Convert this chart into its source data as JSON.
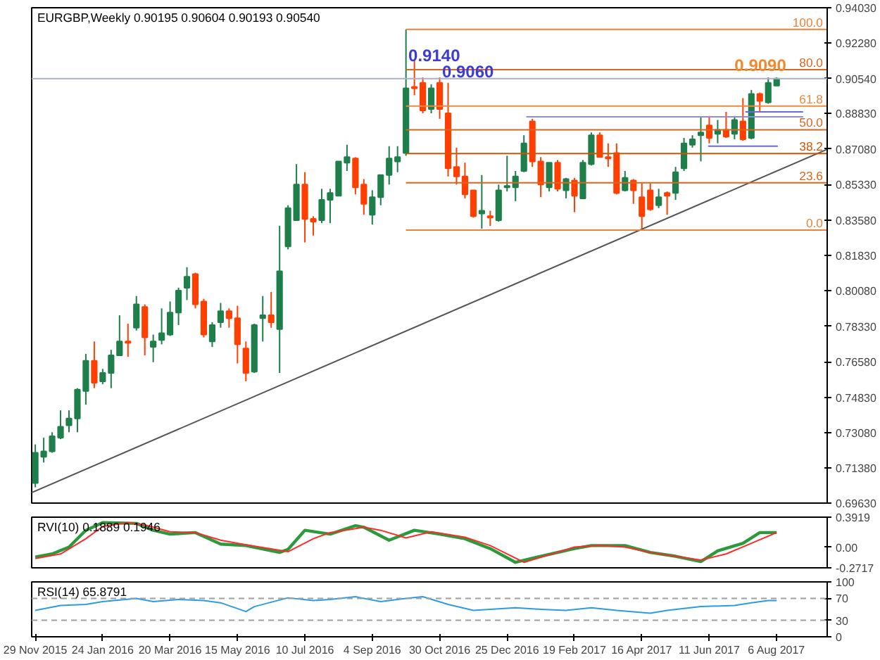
{
  "chart_data": [
    {
      "type": "candlestick",
      "title": "EURGBP,Weekly  0.90195 0.90604 0.90193 0.90540",
      "tick_labels": "y",
      "grid": false,
      "xlim": [
        "2015-11-26",
        "2017-09-17"
      ],
      "ylim": [
        0.6963,
        0.9403
      ],
      "yticks": [
        {
          "value": 0.9403,
          "label": "0.94030"
        },
        {
          "value": 0.9228,
          "label": "0.92280"
        },
        {
          "value": 0.9054,
          "label": "0.90540"
        },
        {
          "value": 0.8883,
          "label": "0.88830"
        },
        {
          "value": 0.8708,
          "label": "0.87080"
        },
        {
          "value": 0.8533,
          "label": "0.85330"
        },
        {
          "value": 0.8358,
          "label": "0.83580"
        },
        {
          "value": 0.8183,
          "label": "0.81830"
        },
        {
          "value": 0.8008,
          "label": "0.80080"
        },
        {
          "value": 0.7833,
          "label": "0.78330"
        },
        {
          "value": 0.7658,
          "label": "0.76580"
        },
        {
          "value": 0.7483,
          "label": "0.74830"
        },
        {
          "value": 0.7308,
          "label": "0.73080"
        },
        {
          "value": 0.7138,
          "label": "0.71380"
        },
        {
          "value": 0.6963,
          "label": "0.69630"
        }
      ],
      "x": [
        "2015-11-29",
        "2015-12-06",
        "2015-12-13",
        "2015-12-20",
        "2015-12-27",
        "2016-01-03",
        "2016-01-10",
        "2016-01-17",
        "2016-01-24",
        "2016-01-31",
        "2016-02-07",
        "2016-02-14",
        "2016-02-21",
        "2016-02-28",
        "2016-03-06",
        "2016-03-13",
        "2016-03-20",
        "2016-03-27",
        "2016-04-03",
        "2016-04-10",
        "2016-04-17",
        "2016-04-24",
        "2016-05-01",
        "2016-05-08",
        "2016-05-15",
        "2016-05-22",
        "2016-05-29",
        "2016-06-05",
        "2016-06-12",
        "2016-06-19",
        "2016-06-26",
        "2016-07-03",
        "2016-07-10",
        "2016-07-17",
        "2016-07-24",
        "2016-07-31",
        "2016-08-07",
        "2016-08-14",
        "2016-08-21",
        "2016-08-28",
        "2016-09-04",
        "2016-09-11",
        "2016-09-18",
        "2016-09-25",
        "2016-10-02",
        "2016-10-09",
        "2016-10-16",
        "2016-10-23",
        "2016-10-30",
        "2016-11-06",
        "2016-11-13",
        "2016-11-20",
        "2016-11-27",
        "2016-12-04",
        "2016-12-11",
        "2016-12-18",
        "2016-12-25",
        "2017-01-01",
        "2017-01-08",
        "2017-01-15",
        "2017-01-22",
        "2017-01-29",
        "2017-02-05",
        "2017-02-12",
        "2017-02-19",
        "2017-02-26",
        "2017-03-05",
        "2017-03-12",
        "2017-03-19",
        "2017-03-26",
        "2017-04-02",
        "2017-04-09",
        "2017-04-16",
        "2017-04-23",
        "2017-04-30",
        "2017-05-07",
        "2017-05-14",
        "2017-05-21",
        "2017-05-28",
        "2017-06-04",
        "2017-06-11",
        "2017-06-18",
        "2017-06-25",
        "2017-07-02",
        "2017-07-09",
        "2017-07-16",
        "2017-07-23",
        "2017-07-30",
        "2017-08-06"
      ],
      "ohlc": [
        [
          0.7062,
          0.7252,
          0.7041,
          0.7211
        ],
        [
          0.7191,
          0.7285,
          0.7163,
          0.7218
        ],
        [
          0.7218,
          0.7312,
          0.7211,
          0.7292
        ],
        [
          0.7285,
          0.742,
          0.7278,
          0.7339
        ],
        [
          0.7346,
          0.742,
          0.7312,
          0.738
        ],
        [
          0.738,
          0.7529,
          0.7312,
          0.7522
        ],
        [
          0.7515,
          0.7698,
          0.7448,
          0.7664
        ],
        [
          0.7664,
          0.7759,
          0.7529,
          0.7556
        ],
        [
          0.7563,
          0.7624,
          0.7549,
          0.7604
        ],
        [
          0.7604,
          0.7718,
          0.7529,
          0.7691
        ],
        [
          0.7691,
          0.7888,
          0.7691,
          0.7759
        ],
        [
          0.7759,
          0.7847,
          0.7684,
          0.7752
        ],
        [
          0.7827,
          0.7983,
          0.7813,
          0.7942
        ],
        [
          0.7929,
          0.7942,
          0.7691,
          0.7779
        ],
        [
          0.7732,
          0.7793,
          0.7657,
          0.7759
        ],
        [
          0.7766,
          0.7922,
          0.7745,
          0.78
        ],
        [
          0.7793,
          0.7956,
          0.7786,
          0.7901
        ],
        [
          0.7901,
          0.8024,
          0.784,
          0.801
        ],
        [
          0.8024,
          0.8125,
          0.7963,
          0.8078
        ],
        [
          0.8091,
          0.8098,
          0.7922,
          0.7942
        ],
        [
          0.7956,
          0.7969,
          0.7779,
          0.7793
        ],
        [
          0.7759,
          0.7854,
          0.7732,
          0.784
        ],
        [
          0.7854,
          0.7949,
          0.7827,
          0.7908
        ],
        [
          0.7908,
          0.7922,
          0.7827,
          0.7874
        ],
        [
          0.7874,
          0.7935,
          0.7651,
          0.7745
        ],
        [
          0.7725,
          0.7759,
          0.7563,
          0.7604
        ],
        [
          0.761,
          0.7847,
          0.7604,
          0.784
        ],
        [
          0.7874,
          0.7983,
          0.7759,
          0.7888
        ],
        [
          0.7888,
          0.8003,
          0.7827,
          0.7854
        ],
        [
          0.782,
          0.8329,
          0.7604,
          0.8105
        ],
        [
          0.8227,
          0.843,
          0.8213,
          0.8416
        ],
        [
          0.8356,
          0.8633,
          0.8356,
          0.8532
        ],
        [
          0.8532,
          0.8593,
          0.8247,
          0.8362
        ],
        [
          0.8363,
          0.8376,
          0.8281,
          0.8349
        ],
        [
          0.8356,
          0.8511,
          0.8342,
          0.8457
        ],
        [
          0.8457,
          0.8511,
          0.8342,
          0.8491
        ],
        [
          0.8477,
          0.8646,
          0.8477,
          0.8646
        ],
        [
          0.864,
          0.8728,
          0.8599,
          0.8667
        ],
        [
          0.866,
          0.8667,
          0.8484,
          0.8518
        ],
        [
          0.8532,
          0.8559,
          0.8383,
          0.8437
        ],
        [
          0.8383,
          0.8504,
          0.8335,
          0.847
        ],
        [
          0.847,
          0.8579,
          0.843,
          0.8579
        ],
        [
          0.8579,
          0.8721,
          0.8532,
          0.866
        ],
        [
          0.8646,
          0.8721,
          0.8593,
          0.8667
        ],
        [
          0.8687,
          0.9296,
          0.8674,
          0.9006
        ],
        [
          0.9013,
          0.9147,
          0.8972,
          0.9006
        ],
        [
          0.9033,
          0.906,
          0.8883,
          0.8897
        ],
        [
          0.8904,
          0.9026,
          0.8883,
          0.9006
        ],
        [
          0.9033,
          0.906,
          0.8856,
          0.8904
        ],
        [
          0.8883,
          0.9033,
          0.8572,
          0.8612
        ],
        [
          0.8619,
          0.8714,
          0.8532,
          0.8572
        ],
        [
          0.8572,
          0.864,
          0.8464,
          0.8484
        ],
        [
          0.8504,
          0.8504,
          0.8369,
          0.8376
        ],
        [
          0.8389,
          0.8579,
          0.8315,
          0.8403
        ],
        [
          0.8376,
          0.8403,
          0.8328,
          0.8369
        ],
        [
          0.8356,
          0.8532,
          0.8349,
          0.8504
        ],
        [
          0.8518,
          0.8674,
          0.8498,
          0.8525
        ],
        [
          0.8518,
          0.8599,
          0.845,
          0.8572
        ],
        [
          0.8599,
          0.8775,
          0.8593,
          0.8735
        ],
        [
          0.8843,
          0.8856,
          0.8619,
          0.8646
        ],
        [
          0.8646,
          0.8667,
          0.847,
          0.8532
        ],
        [
          0.8518,
          0.864,
          0.8498,
          0.864
        ],
        [
          0.864,
          0.8653,
          0.8498,
          0.8511
        ],
        [
          0.8504,
          0.8565,
          0.8464,
          0.8559
        ],
        [
          0.8552,
          0.8565,
          0.8396,
          0.8477
        ],
        [
          0.8464,
          0.8653,
          0.8464,
          0.864
        ],
        [
          0.8633,
          0.8789,
          0.8626,
          0.8775
        ],
        [
          0.8775,
          0.8789,
          0.8667,
          0.8667
        ],
        [
          0.8667,
          0.8735,
          0.8619,
          0.866
        ],
        [
          0.8687,
          0.8735,
          0.8484,
          0.8491
        ],
        [
          0.8504,
          0.8599,
          0.8498,
          0.8565
        ],
        [
          0.8552,
          0.8559,
          0.8437,
          0.8504
        ],
        [
          0.847,
          0.8538,
          0.8315,
          0.8376
        ],
        [
          0.8504,
          0.8538,
          0.8403,
          0.841
        ],
        [
          0.843,
          0.8511,
          0.8416,
          0.847
        ],
        [
          0.8491,
          0.8498,
          0.8383,
          0.8477
        ],
        [
          0.8491,
          0.8619,
          0.8457,
          0.8593
        ],
        [
          0.8612,
          0.8762,
          0.8599,
          0.8735
        ],
        [
          0.8728,
          0.8775,
          0.8714,
          0.8755
        ],
        [
          0.8775,
          0.8863,
          0.8646,
          0.8789
        ],
        [
          0.8823,
          0.887,
          0.8735,
          0.8762
        ],
        [
          0.8782,
          0.885,
          0.8735,
          0.8802
        ],
        [
          0.8802,
          0.889,
          0.8762,
          0.8768
        ],
        [
          0.8782,
          0.887,
          0.8755,
          0.885
        ],
        [
          0.8843,
          0.8958,
          0.8748,
          0.8755
        ],
        [
          0.8762,
          0.8998,
          0.8755,
          0.8978
        ],
        [
          0.8978,
          0.8985,
          0.889,
          0.8944
        ],
        [
          0.8937,
          0.906,
          0.893,
          0.9033
        ],
        [
          0.90195,
          0.90604,
          0.90193,
          0.9054
        ]
      ],
      "colors": [
        "#1e7f4b",
        "#1e7f4b",
        "#1e7f4b",
        "#1e7f4b",
        "#1e7f4b",
        "#1e7f4b",
        "#1e7f4b",
        "#ff3f00",
        "#1e7f4b",
        "#1e7f4b",
        "#1e7f4b",
        "#ff3f00",
        "#1e7f4b",
        "#ff3f00",
        "#1e7f4b",
        "#1e7f4b",
        "#1e7f4b",
        "#1e7f4b",
        "#1e7f4b",
        "#ff3f00",
        "#ff3f00",
        "#1e7f4b",
        "#1e7f4b",
        "#ff3f00",
        "#ff3f00",
        "#ff3f00",
        "#1e7f4b",
        "#1e7f4b",
        "#ff3f00",
        "#1e7f4b",
        "#1e7f4b",
        "#1e7f4b",
        "#ff3f00",
        "#ff3f00",
        "#1e7f4b",
        "#1e7f4b",
        "#1e7f4b",
        "#1e7f4b",
        "#ff3f00",
        "#ff3f00",
        "#1e7f4b",
        "#1e7f4b",
        "#1e7f4b",
        "#1e7f4b",
        "#1e7f4b",
        "#ff3f00",
        "#ff3f00",
        "#1e7f4b",
        "#ff3f00",
        "#ff3f00",
        "#ff3f00",
        "#ff3f00",
        "#ff3f00",
        "#1e7f4b",
        "#ff3f00",
        "#1e7f4b",
        "#1e7f4b",
        "#1e7f4b",
        "#1e7f4b",
        "#ff3f00",
        "#ff3f00",
        "#1e7f4b",
        "#ff3f00",
        "#1e7f4b",
        "#ff3f00",
        "#1e7f4b",
        "#1e7f4b",
        "#ff3f00",
        "#ff3f00",
        "#ff3f00",
        "#1e7f4b",
        "#ff3f00",
        "#ff3f00",
        "#ff3f00",
        "#1e7f4b",
        "#ff3f00",
        "#1e7f4b",
        "#1e7f4b",
        "#1e7f4b",
        "#1e7f4b",
        "#ff3f00",
        "#1e7f4b",
        "#ff3f00",
        "#1e7f4b",
        "#ff3f00",
        "#1e7f4b",
        "#ff3f00",
        "#1e7f4b",
        "#1e7f4b"
      ],
      "series": [
        {
          "type": "line",
          "color": "#555555",
          "x": [
            "2015-11-26",
            "2017-09-17"
          ],
          "values": [
            0.7015,
            0.8706
          ]
        },
        {
          "type": "line",
          "name": "100.0",
          "color": "#e8823a",
          "x": [
            "2016-10-02",
            "2017-09-17"
          ],
          "values": [
            0.9296,
            0.9296
          ]
        },
        {
          "type": "line",
          "name": "80.0",
          "color": "#d9661f",
          "x": [
            "2016-10-02",
            "2017-09-17"
          ],
          "values": [
            0.9098,
            0.9098
          ]
        },
        {
          "type": "line",
          "name": "61.8",
          "color": "#ee8a3e",
          "x": [
            "2016-10-02",
            "2017-09-17"
          ],
          "values": [
            0.8919,
            0.8919
          ]
        },
        {
          "type": "line",
          "name": "50.0",
          "color": "#d9661f",
          "x": [
            "2016-10-02",
            "2017-09-17"
          ],
          "values": [
            0.8802,
            0.8802
          ]
        },
        {
          "type": "line",
          "name": "38.2",
          "color": "#d35400",
          "x": [
            "2016-10-02",
            "2017-09-17"
          ],
          "values": [
            0.8685,
            0.8685
          ]
        },
        {
          "type": "line",
          "name": "23.6",
          "color": "#d9661f",
          "x": [
            "2016-10-02",
            "2017-09-17"
          ],
          "values": [
            0.8541,
            0.8541
          ]
        },
        {
          "type": "line",
          "name": "0.0",
          "color": "#e8823a",
          "x": [
            "2016-10-02",
            "2017-09-17"
          ],
          "values": [
            0.8308,
            0.8308
          ]
        },
        {
          "type": "line",
          "color": "#8c8cf0",
          "x": [
            "2017-01-10",
            "2017-08-28"
          ],
          "values": [
            0.8866,
            0.8866
          ]
        },
        {
          "type": "line",
          "color": "#6a6ae0",
          "x": [
            "2017-07-11",
            "2017-08-28"
          ],
          "values": [
            0.889,
            0.889
          ]
        },
        {
          "type": "line",
          "color": "#6a6ae0",
          "x": [
            "2017-06-10",
            "2017-08-07"
          ],
          "values": [
            0.8721,
            0.8721
          ]
        }
      ],
      "ref_lines": [
        {
          "axis": "y",
          "value": 0.9054,
          "color": "#a8b0c8"
        }
      ],
      "annotations": [
        {
          "text": "0.9140",
          "x": "2016-10-04",
          "y": 0.914
        },
        {
          "text": "0.9060",
          "x": "2016-11-01",
          "y": 0.906
        },
        {
          "text": "0.9090",
          "x": "2017-07-02",
          "y": 0.909
        }
      ]
    },
    {
      "type": "line",
      "title": "RVI(10) 0.1889 0.1946",
      "tick_labels": "y",
      "grid": false,
      "xlim": [
        "2015-11-26",
        "2017-09-17"
      ],
      "ylim": [
        -0.2717,
        0.3919
      ],
      "yticks": [
        0.3919,
        {
          "value": 0,
          "label": "0.00"
        },
        -0.2717
      ],
      "series": [
        {
          "color": "#2a9a3a",
          "x": [
            "2015-11-29",
            "2015-12-13",
            "2015-12-27",
            "2016-01-10",
            "2016-01-24",
            "2016-02-21",
            "2016-03-06",
            "2016-03-20",
            "2016-04-10",
            "2016-05-01",
            "2016-05-22",
            "2016-06-19",
            "2016-06-26",
            "2016-07-10",
            "2016-07-31",
            "2016-08-21",
            "2016-08-28",
            "2016-09-18",
            "2016-10-09",
            "2016-10-30",
            "2016-11-20",
            "2016-12-11",
            "2017-01-01",
            "2017-01-22",
            "2017-02-19",
            "2017-03-05",
            "2017-04-02",
            "2017-04-23",
            "2017-05-14",
            "2017-06-04",
            "2017-06-18",
            "2017-07-09",
            "2017-07-23",
            "2017-08-06"
          ],
          "values": [
            -0.13,
            -0.09,
            0,
            0.22,
            0.32,
            0.31,
            0.22,
            0.17,
            0.19,
            0.04,
            0.02,
            -0.07,
            -0.03,
            0.22,
            0.17,
            0.28,
            0.26,
            0.09,
            0.22,
            0.17,
            0.11,
            -0.02,
            -0.2,
            -0.12,
            -0.02,
            0.02,
            0.02,
            -0.07,
            -0.12,
            -0.19,
            -0.05,
            0.05,
            0.19,
            0.19
          ]
        },
        {
          "color": "#ff2a2a",
          "x": [
            "2015-11-29",
            "2015-12-20",
            "2016-01-10",
            "2016-01-24",
            "2016-02-14",
            "2016-02-28",
            "2016-03-20",
            "2016-04-10",
            "2016-05-01",
            "2016-05-22",
            "2016-06-26",
            "2016-07-17",
            "2016-07-31",
            "2016-08-28",
            "2016-09-11",
            "2016-10-02",
            "2016-10-23",
            "2016-11-20",
            "2016-12-11",
            "2017-01-08",
            "2017-01-29",
            "2017-02-19",
            "2017-03-12",
            "2017-04-02",
            "2017-04-23",
            "2017-06-04",
            "2017-06-25",
            "2017-07-16",
            "2017-08-06"
          ],
          "values": [
            -0.15,
            -0.09,
            0.11,
            0.27,
            0.32,
            0.29,
            0.2,
            0.19,
            0.09,
            0.03,
            -0.06,
            0.11,
            0.19,
            0.26,
            0.22,
            0.12,
            0.2,
            0.13,
            0.02,
            -0.2,
            -0.1,
            0,
            0.02,
            0,
            -0.07,
            -0.17,
            -0.09,
            0.05,
            0.19
          ]
        }
      ]
    },
    {
      "type": "line",
      "title": "RSI(14) 65.8791",
      "grid": false,
      "xlim": [
        "2015-11-26",
        "2017-09-17"
      ],
      "ylim": [
        0,
        100
      ],
      "yticks": [
        100,
        70,
        30,
        0
      ],
      "xticks": [
        {
          "value": "2015-11-29",
          "label": "29 Nov 2015"
        },
        {
          "value": "2016-01-24",
          "label": "24 Jan 2016"
        },
        {
          "value": "2016-03-20",
          "label": "20 Mar 2016"
        },
        {
          "value": "2016-05-15",
          "label": "15 May 2016"
        },
        {
          "value": "2016-07-10",
          "label": "10 Jul 2016"
        },
        {
          "value": "2016-09-04",
          "label": "4 Sep 2016"
        },
        {
          "value": "2016-10-30",
          "label": "30 Oct 2016"
        },
        {
          "value": "2016-12-25",
          "label": "25 Dec 2016"
        },
        {
          "value": "2017-02-19",
          "label": "19 Feb 2017"
        },
        {
          "value": "2017-04-16",
          "label": "16 Apr 2017"
        },
        {
          "value": "2017-06-11",
          "label": "11 Jun 2017"
        },
        {
          "value": "2017-08-06",
          "label": "6 Aug 2017"
        }
      ],
      "ref_lines": [
        {
          "axis": "y",
          "value": 70,
          "color": "#a0a0a0",
          "line_style": "dashed"
        },
        {
          "axis": "y",
          "value": 30,
          "color": "#a0a0a0",
          "line_style": "dashed"
        }
      ],
      "series": [
        {
          "color": "#2c9be6",
          "x": [
            "2015-11-29",
            "2015-12-20",
            "2016-01-10",
            "2016-01-24",
            "2016-02-21",
            "2016-03-06",
            "2016-03-27",
            "2016-04-17",
            "2016-05-01",
            "2016-05-22",
            "2016-05-29",
            "2016-06-26",
            "2016-07-17",
            "2016-07-31",
            "2016-08-21",
            "2016-09-11",
            "2016-10-02",
            "2016-10-16",
            "2016-11-06",
            "2016-11-27",
            "2017-01-01",
            "2017-01-22",
            "2017-02-12",
            "2017-03-05",
            "2017-03-26",
            "2017-04-23",
            "2017-05-07",
            "2017-06-04",
            "2017-07-02",
            "2017-07-16",
            "2017-07-30",
            "2017-08-06"
          ],
          "values": [
            48,
            57,
            59,
            64,
            70,
            64,
            68,
            66,
            62,
            46,
            55,
            71,
            66,
            68,
            73,
            64,
            70,
            73,
            59,
            48,
            53,
            50,
            48,
            53,
            48,
            43,
            48,
            55,
            57,
            62,
            66,
            66
          ]
        }
      ]
    }
  ]
}
